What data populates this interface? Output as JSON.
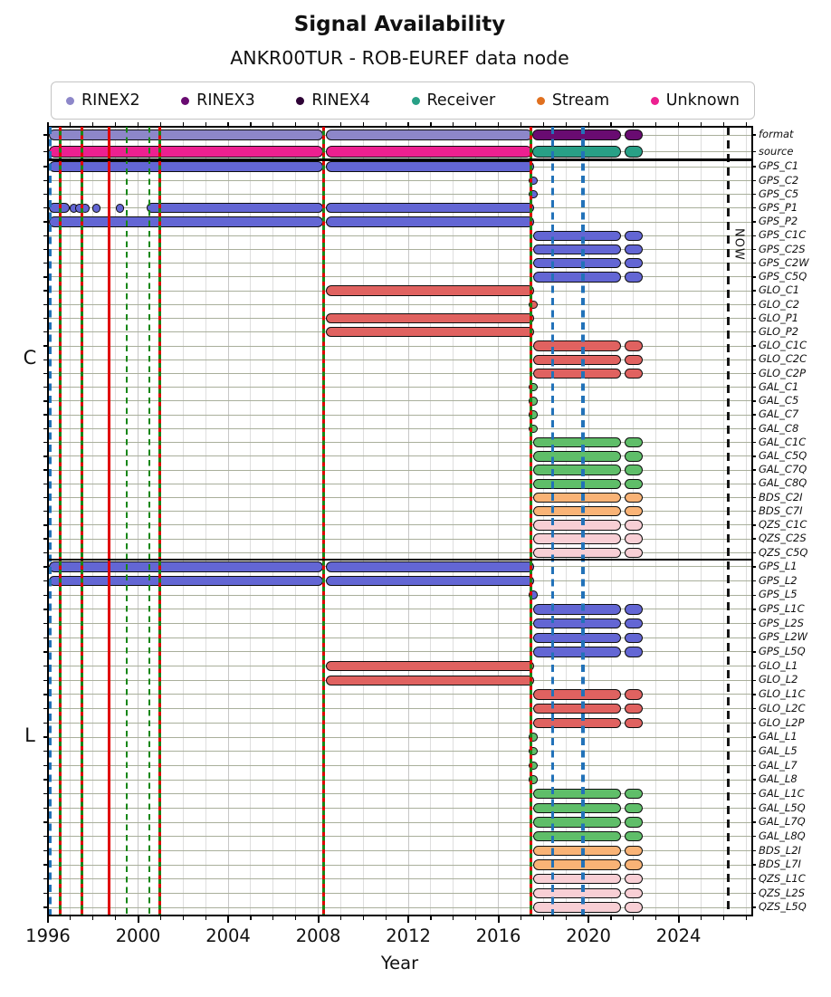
{
  "title": "Signal Availability",
  "subtitle": "ANKR00TUR - ROB-EUREF data node",
  "axis": {
    "xlabel": "Year"
  },
  "now_label": "NOW",
  "legend": {
    "items": [
      {
        "label": "RINEX2",
        "color": "#8d87c9"
      },
      {
        "label": "RINEX3",
        "color": "#690b71"
      },
      {
        "label": "RINEX4",
        "color": "#2e0336"
      },
      {
        "label": "Receiver",
        "color": "#28a086"
      },
      {
        "label": "Stream",
        "color": "#e0701f"
      },
      {
        "label": "Unknown",
        "color": "#ec2090"
      }
    ]
  },
  "chart_data": {
    "type": "bar",
    "variant": "horizontal-availability-timeline",
    "title": "Signal Availability",
    "subtitle": "ANKR00TUR - ROB-EUREF data node",
    "xlabel": "Year",
    "xlim": [
      1996,
      2027.2
    ],
    "xticks_major": [
      1996,
      2000,
      2004,
      2008,
      2012,
      2016,
      2020,
      2024
    ],
    "xticks_minor_step": 1,
    "grid": true,
    "legend_position": "top",
    "series_colors": {
      "RINEX2": "#8d87c9",
      "RINEX3": "#690b71",
      "RINEX4": "#2e0336",
      "Receiver": "#28a086",
      "Stream": "#e0701f",
      "Unknown": "#ec2090",
      "GPS": "#6366d4",
      "GLO": "#e06260",
      "GAL": "#5fbe69",
      "BDS": "#f9b376",
      "QZS": "#f8cfd5"
    },
    "events": [
      {
        "year": 1996.1,
        "style": "blue"
      },
      {
        "year": 1996.55,
        "style": "combo"
      },
      {
        "year": 1997.5,
        "style": "combo"
      },
      {
        "year": 1998.7,
        "style": "red"
      },
      {
        "year": 1999.5,
        "style": "green"
      },
      {
        "year": 2000.5,
        "style": "green"
      },
      {
        "year": 2000.95,
        "style": "combo"
      },
      {
        "year": 2008.25,
        "style": "combo"
      },
      {
        "year": 2017.45,
        "style": "combo"
      },
      {
        "year": 2018.4,
        "style": "blue"
      },
      {
        "year": 2019.75,
        "style": "blue"
      },
      {
        "year": 2026.2,
        "style": "now",
        "label": "NOW"
      }
    ],
    "sections": [
      {
        "name": "header",
        "side_label": "",
        "rows": [
          {
            "label": "format",
            "series": "RINEX2",
            "bars": [
              [
                1996.05,
                2008.2,
                "RINEX2"
              ],
              [
                2008.35,
                2017.5,
                "RINEX2"
              ],
              [
                2017.5,
                2021.45,
                "RINEX3"
              ],
              [
                2021.6,
                2022.4,
                "RINEX3"
              ]
            ]
          },
          {
            "label": "source",
            "series": "Unknown",
            "bars": [
              [
                1996.05,
                2008.2,
                "Unknown"
              ],
              [
                2008.35,
                2017.5,
                "Unknown"
              ],
              [
                2017.5,
                2021.45,
                "Receiver"
              ],
              [
                2021.6,
                2022.4,
                "Receiver"
              ]
            ]
          }
        ]
      },
      {
        "name": "C",
        "side_label": "C",
        "rows": [
          {
            "label": "GPS_C1",
            "series": "GPS",
            "bars": [
              [
                1996.05,
                2008.2
              ],
              [
                2008.35,
                2017.6
              ]
            ]
          },
          {
            "label": "GPS_C2",
            "series": "GPS",
            "dots": [
              2017.55
            ]
          },
          {
            "label": "GPS_C5",
            "series": "GPS",
            "dots": [
              2017.55
            ]
          },
          {
            "label": "GPS_P1",
            "series": "GPS",
            "bars": [
              [
                1996.05,
                1996.95
              ],
              [
                2000.4,
                2008.2
              ],
              [
                2008.35,
                2017.6
              ]
            ],
            "dots": [
              1997.15,
              1997.4,
              1997.65,
              1998.15,
              1999.2
            ]
          },
          {
            "label": "GPS_P2",
            "series": "GPS",
            "bars": [
              [
                1996.05,
                2008.2
              ],
              [
                2008.35,
                2017.6
              ]
            ]
          },
          {
            "label": "GPS_C1C",
            "series": "GPS",
            "bars": [
              [
                2017.55,
                2021.45
              ],
              [
                2021.6,
                2022.4
              ]
            ]
          },
          {
            "label": "GPS_C2S",
            "series": "GPS",
            "bars": [
              [
                2017.55,
                2021.45
              ],
              [
                2021.6,
                2022.4
              ]
            ]
          },
          {
            "label": "GPS_C2W",
            "series": "GPS",
            "bars": [
              [
                2017.55,
                2021.45
              ],
              [
                2021.6,
                2022.4
              ]
            ]
          },
          {
            "label": "GPS_C5Q",
            "series": "GPS",
            "bars": [
              [
                2017.55,
                2021.45
              ],
              [
                2021.6,
                2022.4
              ]
            ]
          },
          {
            "label": "GLO_C1",
            "series": "GLO",
            "bars": [
              [
                2008.35,
                2017.6
              ]
            ]
          },
          {
            "label": "GLO_C2",
            "series": "GLO",
            "dots": [
              2017.55
            ]
          },
          {
            "label": "GLO_P1",
            "series": "GLO",
            "bars": [
              [
                2008.35,
                2017.6
              ]
            ]
          },
          {
            "label": "GLO_P2",
            "series": "GLO",
            "bars": [
              [
                2008.35,
                2017.6
              ]
            ]
          },
          {
            "label": "GLO_C1C",
            "series": "GLO",
            "bars": [
              [
                2017.55,
                2021.45
              ],
              [
                2021.6,
                2022.4
              ]
            ]
          },
          {
            "label": "GLO_C2C",
            "series": "GLO",
            "bars": [
              [
                2017.55,
                2021.45
              ],
              [
                2021.6,
                2022.4
              ]
            ]
          },
          {
            "label": "GLO_C2P",
            "series": "GLO",
            "bars": [
              [
                2017.55,
                2021.45
              ],
              [
                2021.6,
                2022.4
              ]
            ]
          },
          {
            "label": "GAL_C1",
            "series": "GAL",
            "dots": [
              2017.55
            ]
          },
          {
            "label": "GAL_C5",
            "series": "GAL",
            "dots": [
              2017.55
            ]
          },
          {
            "label": "GAL_C7",
            "series": "GAL",
            "dots": [
              2017.55
            ]
          },
          {
            "label": "GAL_C8",
            "series": "GAL",
            "dots": [
              2017.55
            ]
          },
          {
            "label": "GAL_C1C",
            "series": "GAL",
            "bars": [
              [
                2017.55,
                2021.45
              ],
              [
                2021.6,
                2022.4
              ]
            ]
          },
          {
            "label": "GAL_C5Q",
            "series": "GAL",
            "bars": [
              [
                2017.55,
                2021.45
              ],
              [
                2021.6,
                2022.4
              ]
            ]
          },
          {
            "label": "GAL_C7Q",
            "series": "GAL",
            "bars": [
              [
                2017.55,
                2021.45
              ],
              [
                2021.6,
                2022.4
              ]
            ]
          },
          {
            "label": "GAL_C8Q",
            "series": "GAL",
            "bars": [
              [
                2017.55,
                2021.45
              ],
              [
                2021.6,
                2022.4
              ]
            ]
          },
          {
            "label": "BDS_C2I",
            "series": "BDS",
            "bars": [
              [
                2017.55,
                2021.45
              ],
              [
                2021.6,
                2022.4
              ]
            ]
          },
          {
            "label": "BDS_C7I",
            "series": "BDS",
            "bars": [
              [
                2017.55,
                2021.45
              ],
              [
                2021.6,
                2022.4
              ]
            ]
          },
          {
            "label": "QZS_C1C",
            "series": "QZS",
            "bars": [
              [
                2017.55,
                2021.45
              ],
              [
                2021.6,
                2022.4
              ]
            ]
          },
          {
            "label": "QZS_C2S",
            "series": "QZS",
            "bars": [
              [
                2017.55,
                2021.45
              ],
              [
                2021.6,
                2022.4
              ]
            ]
          },
          {
            "label": "QZS_C5Q",
            "series": "QZS",
            "bars": [
              [
                2017.55,
                2021.45
              ],
              [
                2021.6,
                2022.4
              ]
            ]
          }
        ]
      },
      {
        "name": "L",
        "side_label": "L",
        "rows": [
          {
            "label": "GPS_L1",
            "series": "GPS",
            "bars": [
              [
                1996.05,
                2008.2
              ],
              [
                2008.35,
                2017.6
              ]
            ]
          },
          {
            "label": "GPS_L2",
            "series": "GPS",
            "bars": [
              [
                1996.05,
                2008.2
              ],
              [
                2008.35,
                2017.6
              ]
            ]
          },
          {
            "label": "GPS_L5",
            "series": "GPS",
            "dots": [
              2017.55
            ]
          },
          {
            "label": "GPS_L1C",
            "series": "GPS",
            "bars": [
              [
                2017.55,
                2021.45
              ],
              [
                2021.6,
                2022.4
              ]
            ]
          },
          {
            "label": "GPS_L2S",
            "series": "GPS",
            "bars": [
              [
                2017.55,
                2021.45
              ],
              [
                2021.6,
                2022.4
              ]
            ]
          },
          {
            "label": "GPS_L2W",
            "series": "GPS",
            "bars": [
              [
                2017.55,
                2021.45
              ],
              [
                2021.6,
                2022.4
              ]
            ]
          },
          {
            "label": "GPS_L5Q",
            "series": "GPS",
            "bars": [
              [
                2017.55,
                2021.45
              ],
              [
                2021.6,
                2022.4
              ]
            ]
          },
          {
            "label": "GLO_L1",
            "series": "GLO",
            "bars": [
              [
                2008.35,
                2017.6
              ]
            ]
          },
          {
            "label": "GLO_L2",
            "series": "GLO",
            "bars": [
              [
                2008.35,
                2017.6
              ]
            ]
          },
          {
            "label": "GLO_L1C",
            "series": "GLO",
            "bars": [
              [
                2017.55,
                2021.45
              ],
              [
                2021.6,
                2022.4
              ]
            ]
          },
          {
            "label": "GLO_L2C",
            "series": "GLO",
            "bars": [
              [
                2017.55,
                2021.45
              ],
              [
                2021.6,
                2022.4
              ]
            ]
          },
          {
            "label": "GLO_L2P",
            "series": "GLO",
            "bars": [
              [
                2017.55,
                2021.45
              ],
              [
                2021.6,
                2022.4
              ]
            ]
          },
          {
            "label": "GAL_L1",
            "series": "GAL",
            "dots": [
              2017.55
            ]
          },
          {
            "label": "GAL_L5",
            "series": "GAL",
            "dots": [
              2017.55
            ]
          },
          {
            "label": "GAL_L7",
            "series": "GAL",
            "dots": [
              2017.55
            ]
          },
          {
            "label": "GAL_L8",
            "series": "GAL",
            "dots": [
              2017.55
            ]
          },
          {
            "label": "GAL_L1C",
            "series": "GAL",
            "bars": [
              [
                2017.55,
                2021.45
              ],
              [
                2021.6,
                2022.4
              ]
            ]
          },
          {
            "label": "GAL_L5Q",
            "series": "GAL",
            "bars": [
              [
                2017.55,
                2021.45
              ],
              [
                2021.6,
                2022.4
              ]
            ]
          },
          {
            "label": "GAL_L7Q",
            "series": "GAL",
            "bars": [
              [
                2017.55,
                2021.45
              ],
              [
                2021.6,
                2022.4
              ]
            ]
          },
          {
            "label": "GAL_L8Q",
            "series": "GAL",
            "bars": [
              [
                2017.55,
                2021.45
              ],
              [
                2021.6,
                2022.4
              ]
            ]
          },
          {
            "label": "BDS_L2I",
            "series": "BDS",
            "bars": [
              [
                2017.55,
                2021.45
              ],
              [
                2021.6,
                2022.4
              ]
            ]
          },
          {
            "label": "BDS_L7I",
            "series": "BDS",
            "bars": [
              [
                2017.55,
                2021.45
              ],
              [
                2021.6,
                2022.4
              ]
            ]
          },
          {
            "label": "QZS_L1C",
            "series": "QZS",
            "bars": [
              [
                2017.55,
                2021.45
              ],
              [
                2021.6,
                2022.4
              ]
            ]
          },
          {
            "label": "QZS_L2S",
            "series": "QZS",
            "bars": [
              [
                2017.55,
                2021.45
              ],
              [
                2021.6,
                2022.4
              ]
            ]
          },
          {
            "label": "QZS_L5Q",
            "series": "QZS",
            "bars": [
              [
                2017.55,
                2021.45
              ],
              [
                2021.6,
                2022.4
              ]
            ]
          }
        ]
      }
    ]
  }
}
